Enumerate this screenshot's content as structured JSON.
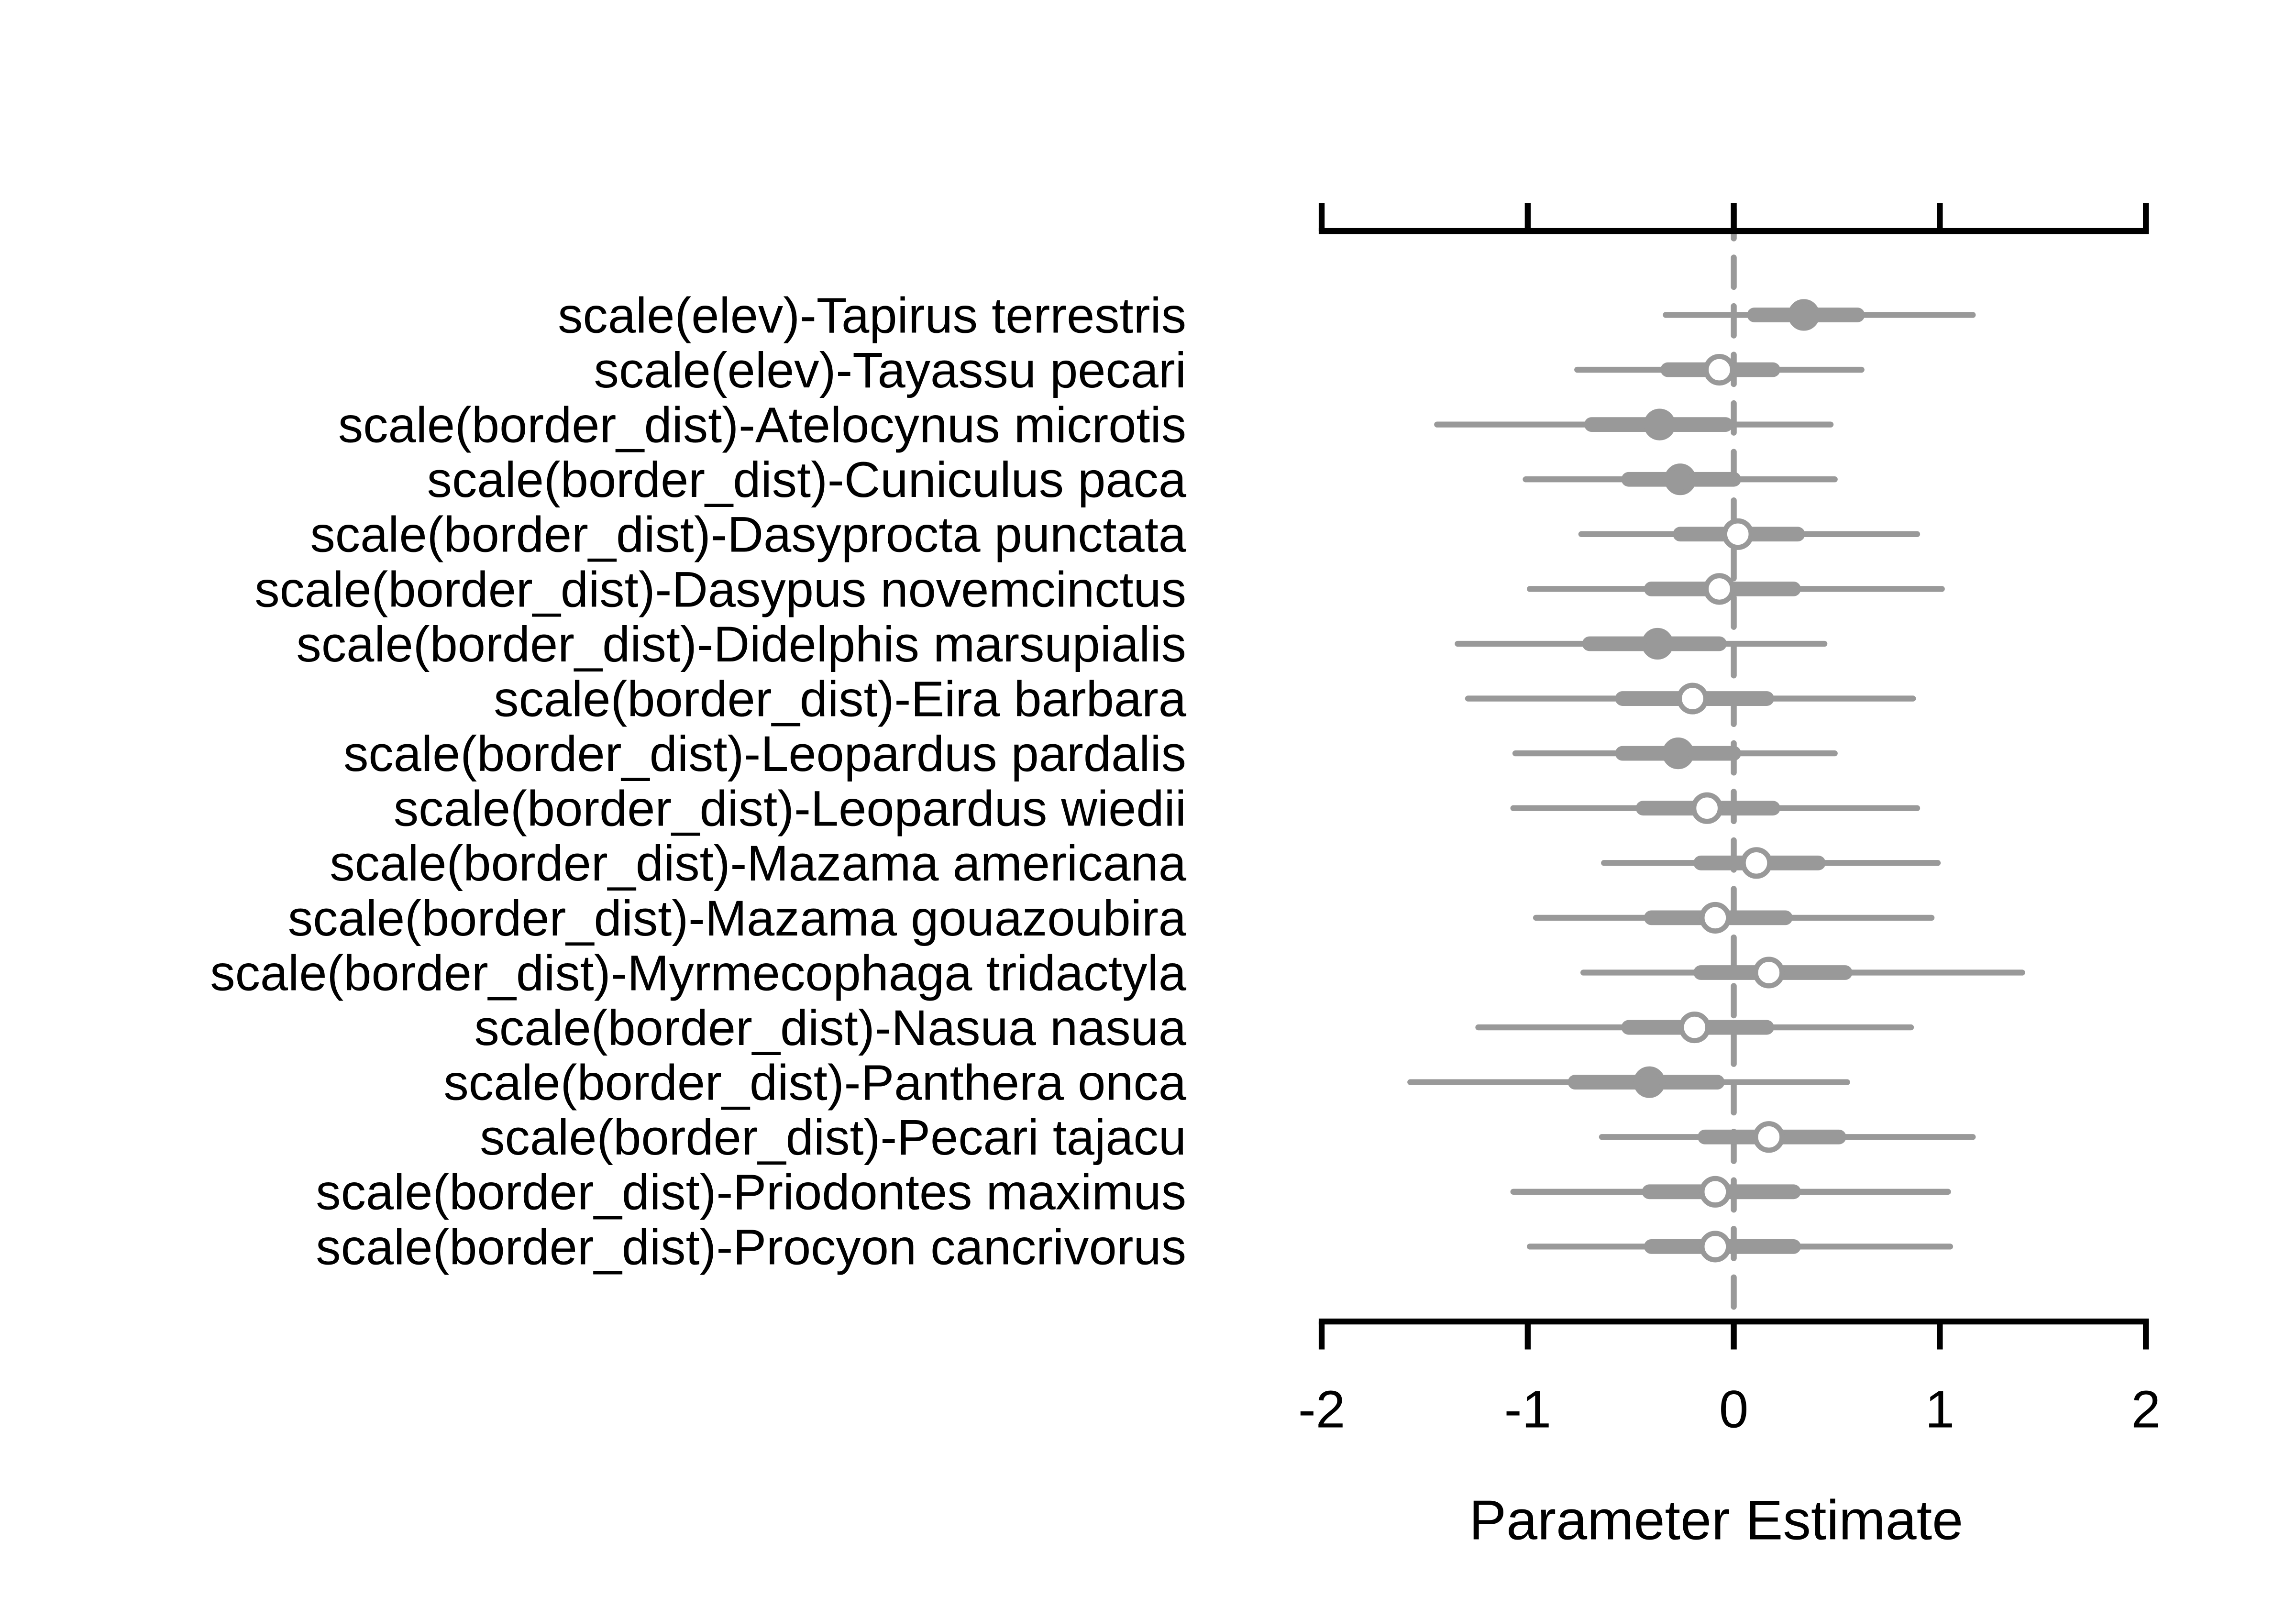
{
  "chart_data": {
    "type": "scatter",
    "subtype": "coefficient-interval-plot",
    "title": "",
    "xlabel": "Parameter Estimate",
    "ylabel": "",
    "xlim": [
      -2,
      2
    ],
    "xticks": [
      -2,
      -1,
      0,
      1,
      2
    ],
    "xtick_labels": [
      "-2",
      "-1",
      "0",
      "1",
      "2"
    ],
    "reference_line": 0,
    "grid": false,
    "colors": {
      "interval": "#999999",
      "axis": "#000000"
    },
    "parameters": [
      {
        "label": "scale(elev)-Tapirus terrestris",
        "estimate": 0.34,
        "inner": [
          0.1,
          0.6
        ],
        "outer": [
          -0.33,
          1.16
        ],
        "significant": true
      },
      {
        "label": "scale(elev)-Tayassu pecari",
        "estimate": -0.07,
        "inner": [
          -0.32,
          0.19
        ],
        "outer": [
          -0.76,
          0.62
        ],
        "significant": false
      },
      {
        "label": "scale(border_dist)-Atelocynus microtis",
        "estimate": -0.36,
        "inner": [
          -0.69,
          -0.04
        ],
        "outer": [
          -1.44,
          0.47
        ],
        "significant": true
      },
      {
        "label": "scale(border_dist)-Cuniculus paca",
        "estimate": -0.26,
        "inner": [
          -0.51,
          0.0
        ],
        "outer": [
          -1.01,
          0.49
        ],
        "significant": true
      },
      {
        "label": "scale(border_dist)-Dasyprocta punctata",
        "estimate": 0.02,
        "inner": [
          -0.26,
          0.31
        ],
        "outer": [
          -0.74,
          0.89
        ],
        "significant": false
      },
      {
        "label": "scale(border_dist)-Dasypus novemcinctus",
        "estimate": -0.07,
        "inner": [
          -0.4,
          0.29
        ],
        "outer": [
          -0.99,
          1.01
        ],
        "significant": false
      },
      {
        "label": "scale(border_dist)-Didelphis marsupialis",
        "estimate": -0.37,
        "inner": [
          -0.7,
          -0.07
        ],
        "outer": [
          -1.34,
          0.44
        ],
        "significant": true
      },
      {
        "label": "scale(border_dist)-Eira barbara",
        "estimate": -0.2,
        "inner": [
          -0.54,
          0.16
        ],
        "outer": [
          -1.29,
          0.87
        ],
        "significant": false
      },
      {
        "label": "scale(border_dist)-Leopardus pardalis",
        "estimate": -0.27,
        "inner": [
          -0.54,
          0.0
        ],
        "outer": [
          -1.06,
          0.49
        ],
        "significant": true
      },
      {
        "label": "scale(border_dist)-Leopardus wiedii",
        "estimate": -0.13,
        "inner": [
          -0.44,
          0.19
        ],
        "outer": [
          -1.07,
          0.89
        ],
        "significant": false
      },
      {
        "label": "scale(border_dist)-Mazama americana",
        "estimate": 0.11,
        "inner": [
          -0.16,
          0.41
        ],
        "outer": [
          -0.63,
          0.99
        ],
        "significant": false
      },
      {
        "label": "scale(border_dist)-Mazama gouazoubira",
        "estimate": -0.09,
        "inner": [
          -0.4,
          0.25
        ],
        "outer": [
          -0.96,
          0.96
        ],
        "significant": false
      },
      {
        "label": "scale(border_dist)-Myrmecophaga tridactyla",
        "estimate": 0.17,
        "inner": [
          -0.16,
          0.54
        ],
        "outer": [
          -0.73,
          1.4
        ],
        "significant": false
      },
      {
        "label": "scale(border_dist)-Nasua nasua",
        "estimate": -0.19,
        "inner": [
          -0.51,
          0.16
        ],
        "outer": [
          -1.24,
          0.86
        ],
        "significant": false
      },
      {
        "label": "scale(border_dist)-Panthera onca",
        "estimate": -0.41,
        "inner": [
          -0.77,
          -0.08
        ],
        "outer": [
          -1.57,
          0.55
        ],
        "significant": true
      },
      {
        "label": "scale(border_dist)-Pecari tajacu",
        "estimate": 0.17,
        "inner": [
          -0.14,
          0.51
        ],
        "outer": [
          -0.64,
          1.16
        ],
        "significant": false
      },
      {
        "label": "scale(border_dist)-Priodontes maximus",
        "estimate": -0.09,
        "inner": [
          -0.41,
          0.29
        ],
        "outer": [
          -1.07,
          1.04
        ],
        "significant": false
      },
      {
        "label": "scale(border_dist)-Procyon cancrivorus",
        "estimate": -0.09,
        "inner": [
          -0.4,
          0.29
        ],
        "outer": [
          -0.99,
          1.05
        ],
        "significant": false
      }
    ]
  }
}
